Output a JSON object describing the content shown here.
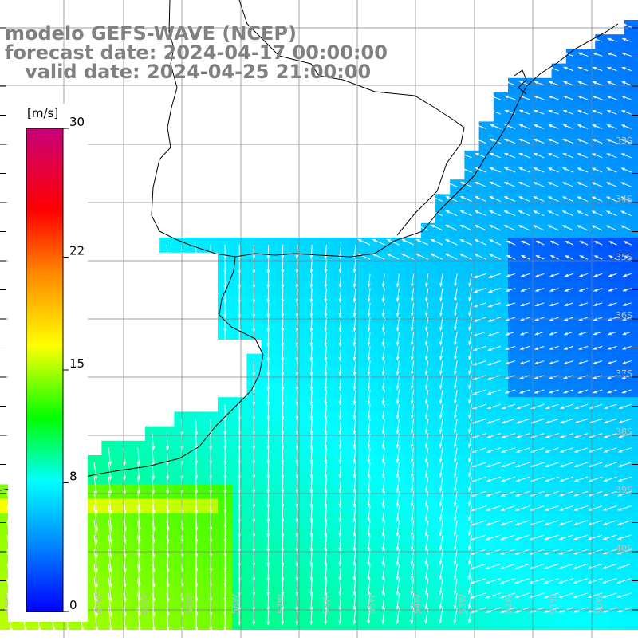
{
  "title": {
    "line1": "modelo GEFS-WAVE (NCEP)",
    "line2": "forecast date: 2024-04-17 00:00:00",
    "line3": "   valid date: 2024-04-25 21:00:00"
  },
  "colorbar": {
    "unit": "[m/s]",
    "ticks": [
      {
        "label": "30",
        "value": 30
      },
      {
        "label": "22",
        "value": 22
      },
      {
        "label": "15",
        "value": 15
      },
      {
        "label": "8",
        "value": 8
      },
      {
        "label": "0",
        "value": 0
      }
    ],
    "colors": [
      "#0000ff",
      "#0088ff",
      "#00ffff",
      "#00ff00",
      "#ffff00",
      "#ff8800",
      "#ff0000",
      "#c8007a"
    ]
  },
  "map": {
    "land_color": "#ffffff",
    "coastline_color": "#000000",
    "grid_color": "#808080",
    "lat_labels": [
      "33S",
      "34S",
      "35S",
      "36S",
      "37S",
      "38S",
      "39S",
      "40S"
    ],
    "lon_labels": [
      "63W",
      "62W",
      "61W",
      "60W",
      "59W",
      "58W",
      "57W",
      "56W",
      "55W",
      "54W",
      "53W",
      "52W",
      "51W",
      "50W"
    ]
  }
}
